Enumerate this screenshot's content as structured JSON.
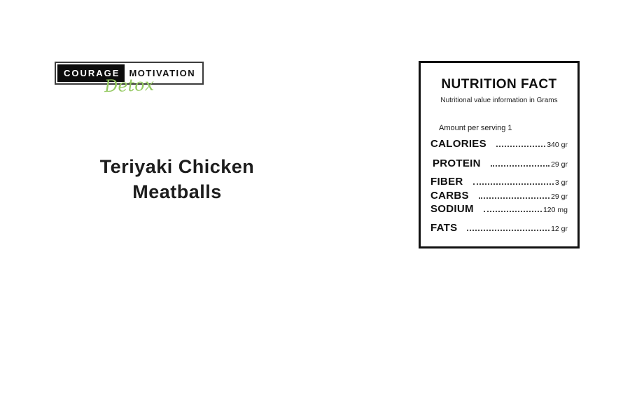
{
  "logo": {
    "part1": "COURAGE",
    "part2": "MOTIVATION",
    "script": "Detox",
    "script_color": "#94c961"
  },
  "recipe": {
    "title": "Teriyaki Chicken Meatballs"
  },
  "nutrition": {
    "title": "NUTRITION FACT",
    "subtitle": "Nutritional value information in Grams",
    "serving_line": "Amount per serving 1",
    "rows": [
      {
        "label": "CALORIES",
        "value": "340 gr"
      },
      {
        "label": "PROTEIN",
        "value": "29 gr"
      },
      {
        "label": "FIBER",
        "value": "3 gr"
      },
      {
        "label": "CARBS",
        "value": "29 gr"
      },
      {
        "label": "SODIUM",
        "value": "120 mg"
      },
      {
        "label": "FATS",
        "value": "12 gr"
      }
    ]
  },
  "colors": {
    "background": "#ffffff",
    "text": "#1d1d1d",
    "card_border": "#111111",
    "accent_green": "#94c961"
  }
}
